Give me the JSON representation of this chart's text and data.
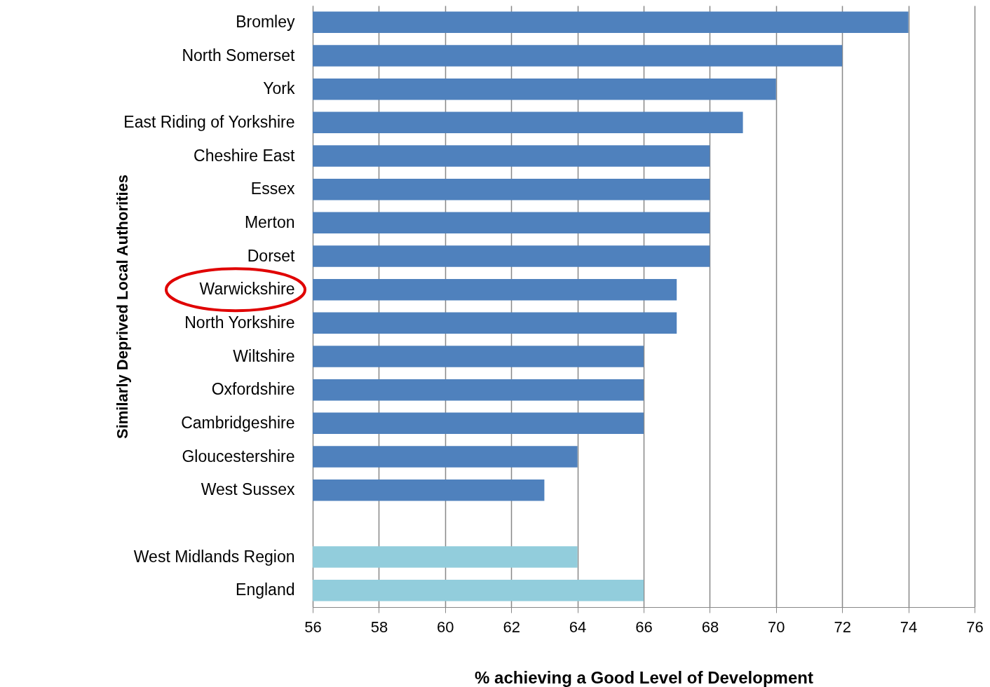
{
  "chart_data": {
    "type": "bar",
    "orientation": "horizontal",
    "xlabel": "% achieving a Good Level of Development",
    "ylabel": "Similarly Deprived Local Authorities",
    "categories": [
      "Bromley",
      "North Somerset",
      "York",
      "East Riding of Yorkshire",
      "Cheshire East",
      "Essex",
      "Merton",
      "Dorset",
      "Warwickshire",
      "North Yorkshire",
      "Wiltshire",
      "Oxfordshire",
      "Cambridgeshire",
      "Gloucestershire",
      "West Sussex",
      null,
      "West Midlands Region",
      "England"
    ],
    "values": [
      74,
      72,
      70,
      69,
      68,
      68,
      68,
      68,
      67,
      67,
      66,
      66,
      66,
      64,
      63,
      null,
      64,
      66
    ],
    "colors": [
      "#4f81bd",
      "#4f81bd",
      "#4f81bd",
      "#4f81bd",
      "#4f81bd",
      "#4f81bd",
      "#4f81bd",
      "#4f81bd",
      "#4f81bd",
      "#4f81bd",
      "#4f81bd",
      "#4f81bd",
      "#4f81bd",
      "#4f81bd",
      "#4f81bd",
      "#4f81bd",
      "#92cddc",
      "#92cddc"
    ],
    "xlim": [
      56,
      76
    ],
    "xticks": [
      56,
      58,
      60,
      62,
      64,
      66,
      68,
      70,
      72,
      74,
      76
    ],
    "grid": "x"
  }
}
